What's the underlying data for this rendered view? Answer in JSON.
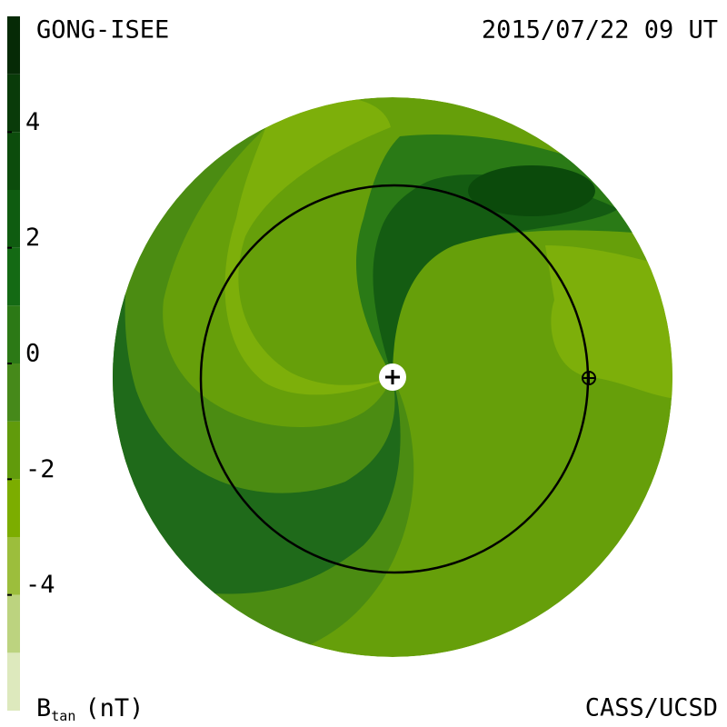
{
  "chart_data": {
    "type": "contour",
    "title_left": "GONG-ISEE",
    "title_right": "2015/07/22 09 UT",
    "credit": "CASS/UCSD",
    "colorbar": {
      "label": {
        "symbol": "B",
        "subscript": "tan",
        "unit": "(nT)"
      },
      "levels": [
        -6,
        -5,
        -4,
        -3,
        -2,
        -1,
        0,
        1,
        2,
        3,
        4,
        5,
        6
      ],
      "colors": [
        "#dde9bd",
        "#bcd37f",
        "#9cbe3c",
        "#7cad00",
        "#619b0b",
        "#46891a",
        "#2c7916",
        "#146a14",
        "#0f5c10",
        "#0c4c0c",
        "#093b09",
        "#062a06"
      ],
      "ticks": [
        4,
        2,
        0,
        -2,
        -4
      ]
    }
  }
}
